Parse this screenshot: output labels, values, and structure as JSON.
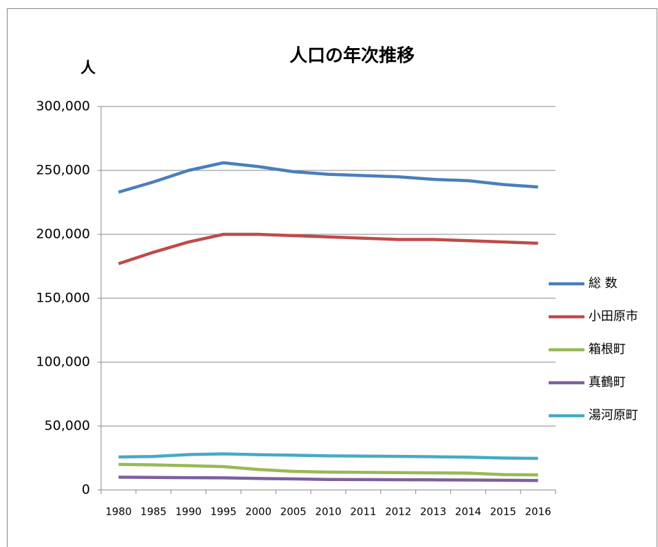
{
  "chart_data": {
    "type": "line",
    "title": "人口の年次推移",
    "y_label": "人",
    "categories": [
      "1980",
      "1985",
      "1990",
      "1995",
      "2000",
      "2005",
      "2010",
      "2011",
      "2012",
      "2013",
      "2014",
      "2015",
      "2016"
    ],
    "series": [
      {
        "name": "総 数",
        "color": "#4a7ebb",
        "values": [
          233000,
          241000,
          250000,
          256000,
          253000,
          249000,
          247000,
          246000,
          245000,
          243000,
          242000,
          239000,
          237000
        ]
      },
      {
        "name": "小田原市",
        "color": "#be4b48",
        "values": [
          177000,
          186000,
          194000,
          200000,
          200000,
          199000,
          198000,
          197000,
          196000,
          196000,
          195000,
          194000,
          193000
        ]
      },
      {
        "name": "箱根町",
        "color": "#98b954",
        "values": [
          20000,
          19600,
          19000,
          18300,
          16000,
          14500,
          14000,
          13800,
          13600,
          13400,
          13200,
          12000,
          11800
        ]
      },
      {
        "name": "真鶴町",
        "color": "#7d5fa0",
        "values": [
          10000,
          9800,
          9600,
          9500,
          9000,
          8700,
          8200,
          8100,
          8000,
          7900,
          7800,
          7600,
          7400
        ]
      },
      {
        "name": "湯河原町",
        "color": "#46aac5",
        "values": [
          25800,
          26200,
          27700,
          28200,
          27600,
          27200,
          26700,
          26500,
          26300,
          26000,
          25700,
          25000,
          24700
        ]
      }
    ],
    "ylim": [
      0,
      300000
    ],
    "yticks": [
      0,
      {
        "value": 50000,
        "label": "50,000"
      },
      {
        "value": 100000,
        "label": "100,000"
      },
      {
        "value": 150000,
        "label": "150,000"
      },
      {
        "value": 200000,
        "label": "200,000"
      },
      {
        "value": 250000,
        "label": "250,000"
      },
      {
        "value": 300000,
        "label": "300,000"
      }
    ],
    "grid": true,
    "legend": "right"
  }
}
